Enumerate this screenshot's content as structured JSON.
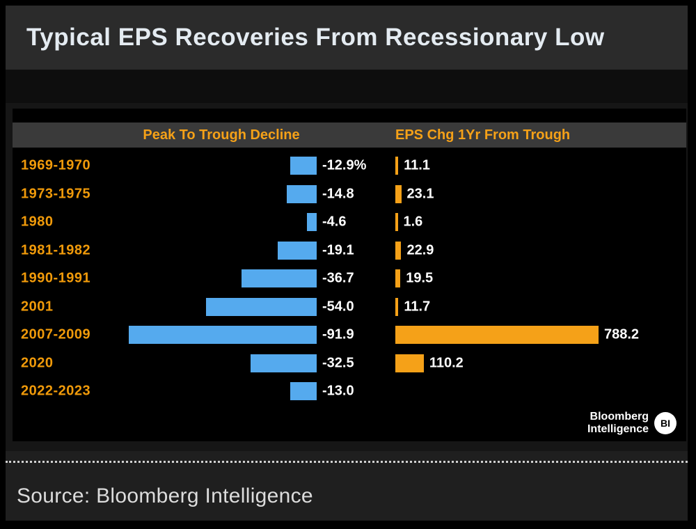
{
  "title": "Typical EPS Recoveries From Recessionary Low",
  "source": "Source: Bloomberg Intelligence",
  "logo": {
    "line1": "Bloomberg",
    "line2": "Intelligence",
    "badge": "BI"
  },
  "colors": {
    "blue": "#55aaee",
    "orange": "#f5a118",
    "label_orange": "#f09a0a",
    "title_text": "#e4ebf1",
    "value_text": "#ffffff",
    "header_band": "#3a3a3a",
    "panel_bg": "#000000"
  },
  "chart_data": {
    "type": "bar",
    "title": "Typical EPS Recoveries From Recessionary Low",
    "left_header": "Peak To Trough Decline",
    "right_header": "EPS Chg 1Yr From Trough",
    "categories": [
      "1969-1970",
      "1973-1975",
      "1980",
      "1981-1982",
      "1990-1991",
      "2001",
      "2007-2009",
      "2020",
      "2022-2023"
    ],
    "series": [
      {
        "name": "Peak To Trough Decline",
        "values": [
          -12.9,
          -14.8,
          -4.6,
          -19.1,
          -36.7,
          -54.0,
          -91.9,
          -32.5,
          -13.0
        ],
        "labels": [
          "-12.9%",
          "-14.8",
          "-4.6",
          "-19.1",
          "-36.7",
          "-54.0",
          "-91.9",
          "-32.5",
          "-13.0"
        ],
        "color": "#55aaee",
        "direction": "negative-left"
      },
      {
        "name": "EPS Chg 1Yr From Trough",
        "values": [
          11.1,
          23.1,
          1.6,
          22.9,
          19.5,
          11.7,
          788.2,
          110.2,
          null
        ],
        "labels": [
          "11.1",
          "23.1",
          "1.6",
          "22.9",
          "19.5",
          "11.7",
          "788.2",
          "110.2",
          ""
        ],
        "color": "#f5a118",
        "direction": "positive-right"
      }
    ],
    "legend_position": "header-band",
    "grid": false,
    "value_labels": "at-bar-end"
  }
}
